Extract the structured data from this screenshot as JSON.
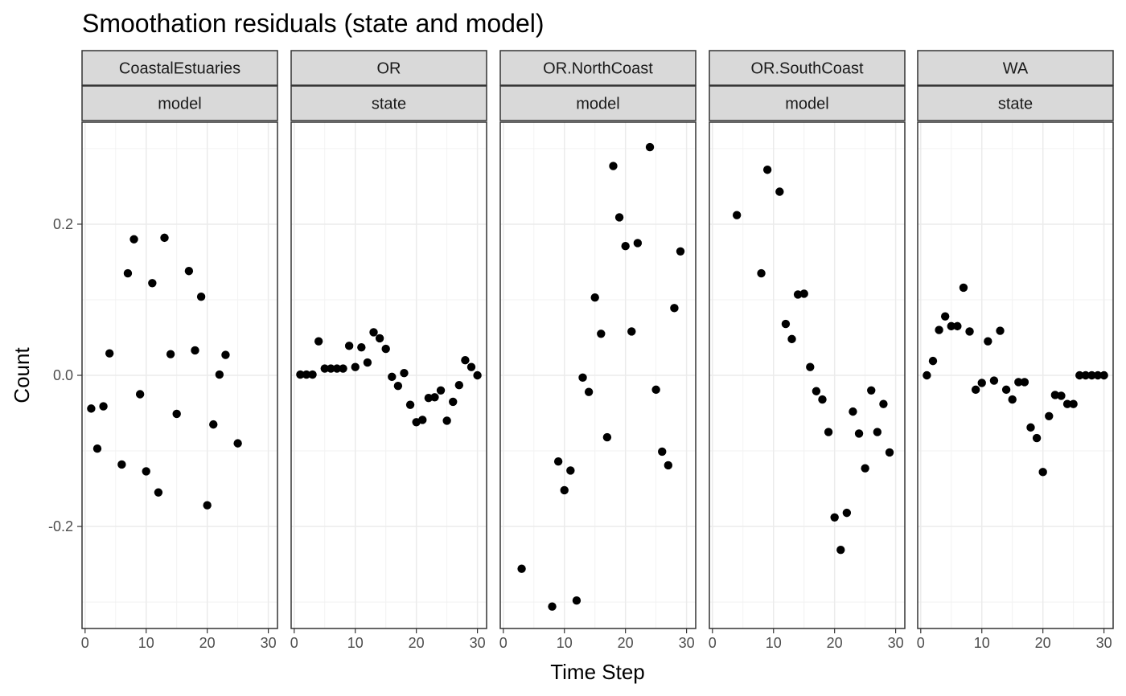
{
  "chart_data": {
    "type": "scatter",
    "title": "Smoothation residuals (state and model)",
    "xlabel": "Time Step",
    "ylabel": "Count",
    "xlim": [
      -0.5,
      31.5
    ],
    "ylim": [
      -0.335,
      0.335
    ],
    "x_ticks": [
      "0",
      "10",
      "20",
      "30"
    ],
    "y_ticks": [
      "-0.2",
      "0.0",
      "0.2"
    ],
    "grid": true,
    "point_color": "#000000",
    "strip_fill": "#d9d9d9",
    "panels": [
      {
        "strip_top": "CoastalEstuaries",
        "strip_bottom": "model",
        "points": [
          [
            1,
            -0.044
          ],
          [
            2,
            -0.097
          ],
          [
            3,
            -0.041
          ],
          [
            4,
            0.029
          ],
          [
            6,
            -0.118
          ],
          [
            7,
            0.135
          ],
          [
            8,
            0.18
          ],
          [
            9,
            -0.025
          ],
          [
            10,
            -0.127
          ],
          [
            11,
            0.122
          ],
          [
            12,
            -0.155
          ],
          [
            13,
            0.182
          ],
          [
            14,
            0.028
          ],
          [
            15,
            -0.051
          ],
          [
            17,
            0.138
          ],
          [
            18,
            0.033
          ],
          [
            19,
            0.104
          ],
          [
            20,
            -0.172
          ],
          [
            21,
            -0.065
          ],
          [
            22,
            0.001
          ],
          [
            23,
            0.027
          ],
          [
            25,
            -0.09
          ]
        ]
      },
      {
        "strip_top": "OR",
        "strip_bottom": "state",
        "points": [
          [
            1,
            0.001
          ],
          [
            2,
            0.001
          ],
          [
            3,
            0.001
          ],
          [
            4,
            0.045
          ],
          [
            5,
            0.009
          ],
          [
            6,
            0.009
          ],
          [
            7,
            0.009
          ],
          [
            8,
            0.009
          ],
          [
            9,
            0.039
          ],
          [
            10,
            0.011
          ],
          [
            11,
            0.037
          ],
          [
            12,
            0.017
          ],
          [
            13,
            0.057
          ],
          [
            14,
            0.049
          ],
          [
            15,
            0.035
          ],
          [
            16,
            -0.002
          ],
          [
            17,
            -0.014
          ],
          [
            18,
            0.003
          ],
          [
            19,
            -0.039
          ],
          [
            20,
            -0.062
          ],
          [
            21,
            -0.059
          ],
          [
            22,
            -0.03
          ],
          [
            23,
            -0.029
          ],
          [
            24,
            -0.02
          ],
          [
            25,
            -0.06
          ],
          [
            26,
            -0.035
          ],
          [
            27,
            -0.013
          ],
          [
            28,
            0.02
          ],
          [
            29,
            0.011
          ],
          [
            30,
            0.0
          ]
        ]
      },
      {
        "strip_top": "OR.NorthCoast",
        "strip_bottom": "model",
        "points": [
          [
            3,
            -0.256
          ],
          [
            8,
            -0.306
          ],
          [
            9,
            -0.114
          ],
          [
            10,
            -0.152
          ],
          [
            11,
            -0.126
          ],
          [
            12,
            -0.298
          ],
          [
            13,
            -0.003
          ],
          [
            14,
            -0.022
          ],
          [
            15,
            0.103
          ],
          [
            16,
            0.055
          ],
          [
            17,
            -0.082
          ],
          [
            18,
            0.277
          ],
          [
            19,
            0.209
          ],
          [
            20,
            0.171
          ],
          [
            21,
            0.058
          ],
          [
            22,
            0.175
          ],
          [
            24,
            0.302
          ],
          [
            25,
            -0.019
          ],
          [
            26,
            -0.101
          ],
          [
            27,
            -0.119
          ],
          [
            28,
            0.089
          ],
          [
            29,
            0.164
          ]
        ]
      },
      {
        "strip_top": "OR.SouthCoast",
        "strip_bottom": "model",
        "points": [
          [
            4,
            0.212
          ],
          [
            8,
            0.135
          ],
          [
            9,
            0.272
          ],
          [
            11,
            0.243
          ],
          [
            12,
            0.068
          ],
          [
            13,
            0.048
          ],
          [
            14,
            0.107
          ],
          [
            15,
            0.108
          ],
          [
            16,
            0.011
          ],
          [
            17,
            -0.021
          ],
          [
            18,
            -0.032
          ],
          [
            19,
            -0.075
          ],
          [
            20,
            -0.188
          ],
          [
            21,
            -0.231
          ],
          [
            22,
            -0.182
          ],
          [
            23,
            -0.048
          ],
          [
            24,
            -0.077
          ],
          [
            25,
            -0.123
          ],
          [
            26,
            -0.02
          ],
          [
            27,
            -0.075
          ],
          [
            28,
            -0.038
          ],
          [
            29,
            -0.102
          ]
        ]
      },
      {
        "strip_top": "WA",
        "strip_bottom": "state",
        "points": [
          [
            1,
            0.0
          ],
          [
            2,
            0.019
          ],
          [
            3,
            0.06
          ],
          [
            4,
            0.078
          ],
          [
            5,
            0.065
          ],
          [
            6,
            0.065
          ],
          [
            7,
            0.116
          ],
          [
            8,
            0.058
          ],
          [
            9,
            -0.019
          ],
          [
            10,
            -0.01
          ],
          [
            11,
            0.045
          ],
          [
            12,
            -0.007
          ],
          [
            13,
            0.059
          ],
          [
            14,
            -0.019
          ],
          [
            15,
            -0.032
          ],
          [
            16,
            -0.009
          ],
          [
            17,
            -0.009
          ],
          [
            18,
            -0.069
          ],
          [
            19,
            -0.083
          ],
          [
            20,
            -0.128
          ],
          [
            21,
            -0.054
          ],
          [
            22,
            -0.026
          ],
          [
            23,
            -0.027
          ],
          [
            24,
            -0.038
          ],
          [
            25,
            -0.038
          ],
          [
            26,
            0.0
          ],
          [
            27,
            0.0
          ],
          [
            28,
            0.0
          ],
          [
            29,
            0.0
          ],
          [
            30,
            0.0
          ]
        ]
      }
    ]
  }
}
